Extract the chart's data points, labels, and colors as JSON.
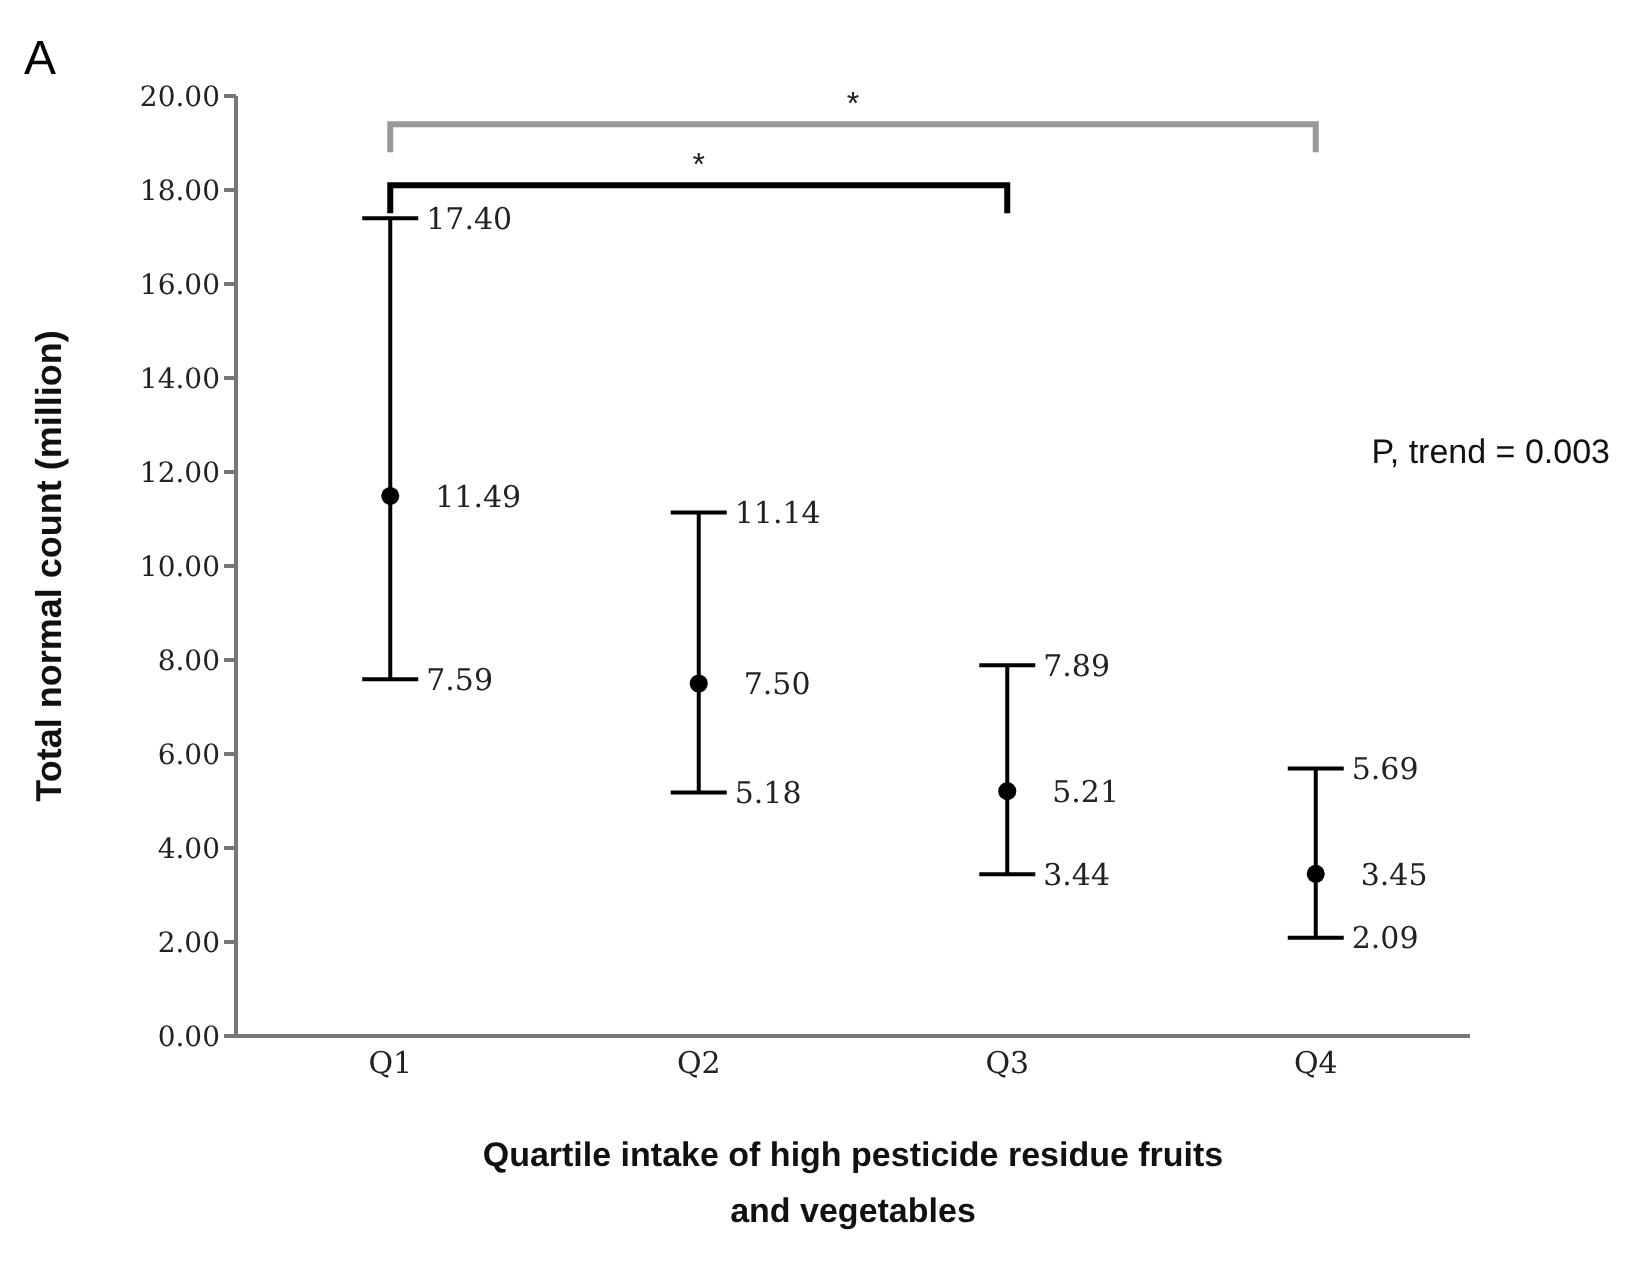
{
  "chart_data": {
    "type": "scatter",
    "title": "A",
    "xlabel": "Quartile intake of high pesticide residue fruits and vegetables",
    "ylabel": "Total normal count (million)",
    "categories": [
      "Q1",
      "Q2",
      "Q3",
      "Q4"
    ],
    "values": [
      11.49,
      7.5,
      5.21,
      3.45
    ],
    "errors": [
      [
        7.59,
        17.4
      ],
      [
        5.18,
        11.14
      ],
      [
        3.44,
        7.89
      ],
      [
        2.09,
        5.69
      ]
    ],
    "value_labels": [
      "11.49",
      "7.50",
      "5.21",
      "3.45"
    ],
    "color": "#000000",
    "marker": "circle",
    "grid": false,
    "legend": false,
    "ylim": [
      0,
      20
    ],
    "yticks": [
      {
        "value": 0,
        "label": "0.00"
      },
      {
        "value": 2,
        "label": "2.00"
      },
      {
        "value": 4,
        "label": "4.00"
      },
      {
        "value": 6,
        "label": "6.00"
      },
      {
        "value": 8,
        "label": "8.00"
      },
      {
        "value": 10,
        "label": "10.00"
      },
      {
        "value": 12,
        "label": "12.00"
      },
      {
        "value": 14,
        "label": "14.00"
      },
      {
        "value": 16,
        "label": "16.00"
      },
      {
        "value": 18,
        "label": "18.00"
      },
      {
        "value": 20,
        "label": "20.00"
      }
    ],
    "annotations": [
      "*",
      "*",
      "P, trend = 0.003",
      {
        "text": "17.40",
        "x": "Q1",
        "y": 17.4
      },
      {
        "text": "7.59",
        "x": "Q1",
        "y": 7.59
      },
      {
        "text": "11.14",
        "x": "Q2",
        "y": 11.14
      },
      {
        "text": "5.18",
        "x": "Q2",
        "y": 5.18
      },
      {
        "text": "7.89",
        "x": "Q3",
        "y": 7.89
      },
      {
        "text": "3.44",
        "x": "Q3",
        "y": 3.44
      },
      {
        "text": "5.69",
        "x": "Q4",
        "y": 5.69
      },
      {
        "text": "2.09",
        "x": "Q4",
        "y": 2.09
      }
    ]
  }
}
